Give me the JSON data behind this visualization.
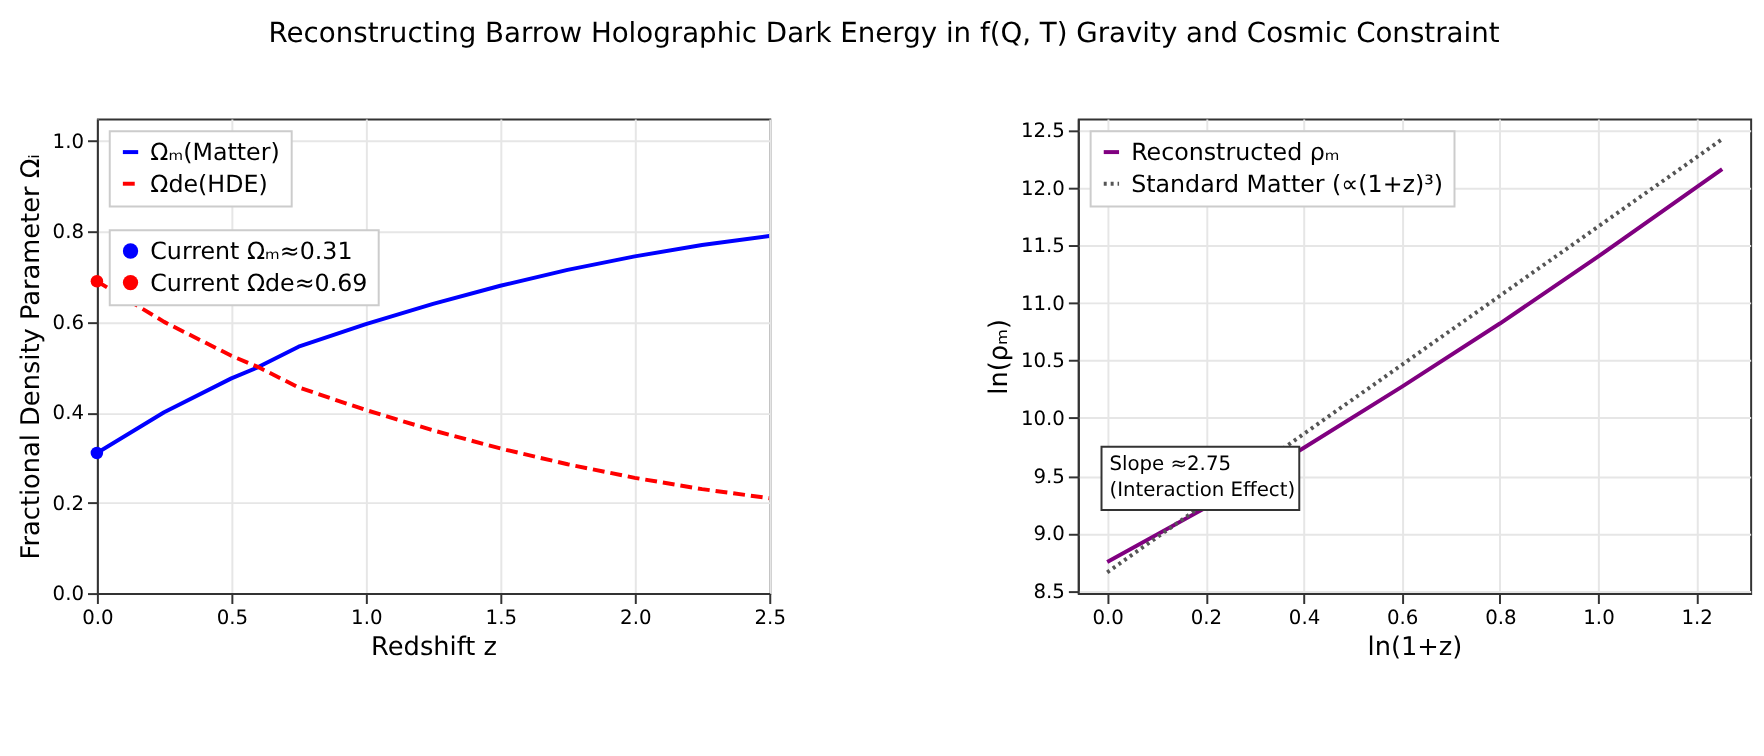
{
  "chart_data": [
    {
      "type": "line",
      "title": "Reconstructing Barrow Holographic Dark Energy in f(Q, T) Gravity and Cosmic Constraint",
      "xlabel": "Redshift z",
      "ylabel": "Fractional Density Parameter Ωᵢ",
      "xlim": [
        0,
        2.5
      ],
      "ylim": [
        0,
        1.05
      ],
      "xticks": [
        {
          "value": 0,
          "label": "0.0"
        },
        0.5,
        {
          "value": 1,
          "label": "1.0"
        },
        1.5,
        {
          "value": 2,
          "label": "2.0"
        },
        2.5
      ],
      "yticks": [
        {
          "value": 0,
          "label": "0.0"
        },
        0.2,
        0.4,
        0.6,
        0.8,
        {
          "value": 1,
          "label": "1.0"
        }
      ],
      "grid": true,
      "legend": "top left",
      "series": [
        {
          "name": "Ωₘ(Matter)",
          "color": "#0000ff",
          "line_style": "solid",
          "x": [
            0,
            0.25,
            0.5,
            0.6,
            0.75,
            1.0,
            1.25,
            1.5,
            1.75,
            2.0,
            2.25,
            2.5
          ],
          "values": [
            0.31,
            0.4,
            0.475,
            0.5,
            0.545,
            0.595,
            0.64,
            0.68,
            0.715,
            0.745,
            0.77,
            0.79
          ]
        },
        {
          "name": "Ωde(HDE)",
          "color": "#ff0000",
          "line_style": "dashed",
          "x": [
            0,
            0.25,
            0.5,
            0.6,
            0.75,
            1.0,
            1.25,
            1.5,
            1.75,
            2.0,
            2.25,
            2.5
          ],
          "values": [
            0.69,
            0.6,
            0.525,
            0.5,
            0.455,
            0.405,
            0.36,
            0.32,
            0.285,
            0.255,
            0.23,
            0.21
          ]
        },
        {
          "name": "Current Ωₘ≈0.31",
          "type": "scatter",
          "marker": "circle",
          "color": "#0000ff",
          "x": [
            0
          ],
          "values": [
            0.31
          ]
        },
        {
          "name": "Current Ωde≈0.69",
          "type": "scatter",
          "marker": "circle",
          "color": "#ff0000",
          "x": [
            0
          ],
          "values": [
            0.69
          ]
        }
      ]
    },
    {
      "type": "line",
      "xlabel": "ln(1+z)",
      "ylabel": "ln(ρₘ)",
      "xlim": [
        -0.06,
        1.31
      ],
      "ylim": [
        8.48,
        12.6
      ],
      "xticks": [
        {
          "value": 0,
          "label": "0.0"
        },
        0.2,
        0.4,
        0.6,
        0.8,
        {
          "value": 1,
          "label": "1.0"
        },
        1.2
      ],
      "yticks": [
        8.5,
        {
          "value": 9,
          "label": "9.0"
        },
        9.5,
        {
          "value": 10,
          "label": "10.0"
        },
        10.5,
        {
          "value": 11,
          "label": "11.0"
        },
        11.5,
        {
          "value": 12,
          "label": "12.0"
        },
        12.5
      ],
      "grid": true,
      "legend": "top left",
      "annotations": [
        "Slope ≈2.75\n(Interaction Effect)"
      ],
      "series": [
        {
          "name": "Reconstructed ρₘ",
          "color": "#800080",
          "line_style": "solid",
          "x": [
            0,
            0.2,
            0.4,
            0.6,
            0.8,
            1.0,
            1.253
          ],
          "values": [
            8.75,
            9.22,
            9.74,
            10.27,
            10.82,
            11.4,
            12.16
          ]
        },
        {
          "name": "Standard Matter (∝(1+z)³)",
          "color": "#555555",
          "line_style": "dotted",
          "x": [
            0,
            1.253
          ],
          "values": [
            8.66,
            12.42
          ]
        }
      ]
    }
  ]
}
